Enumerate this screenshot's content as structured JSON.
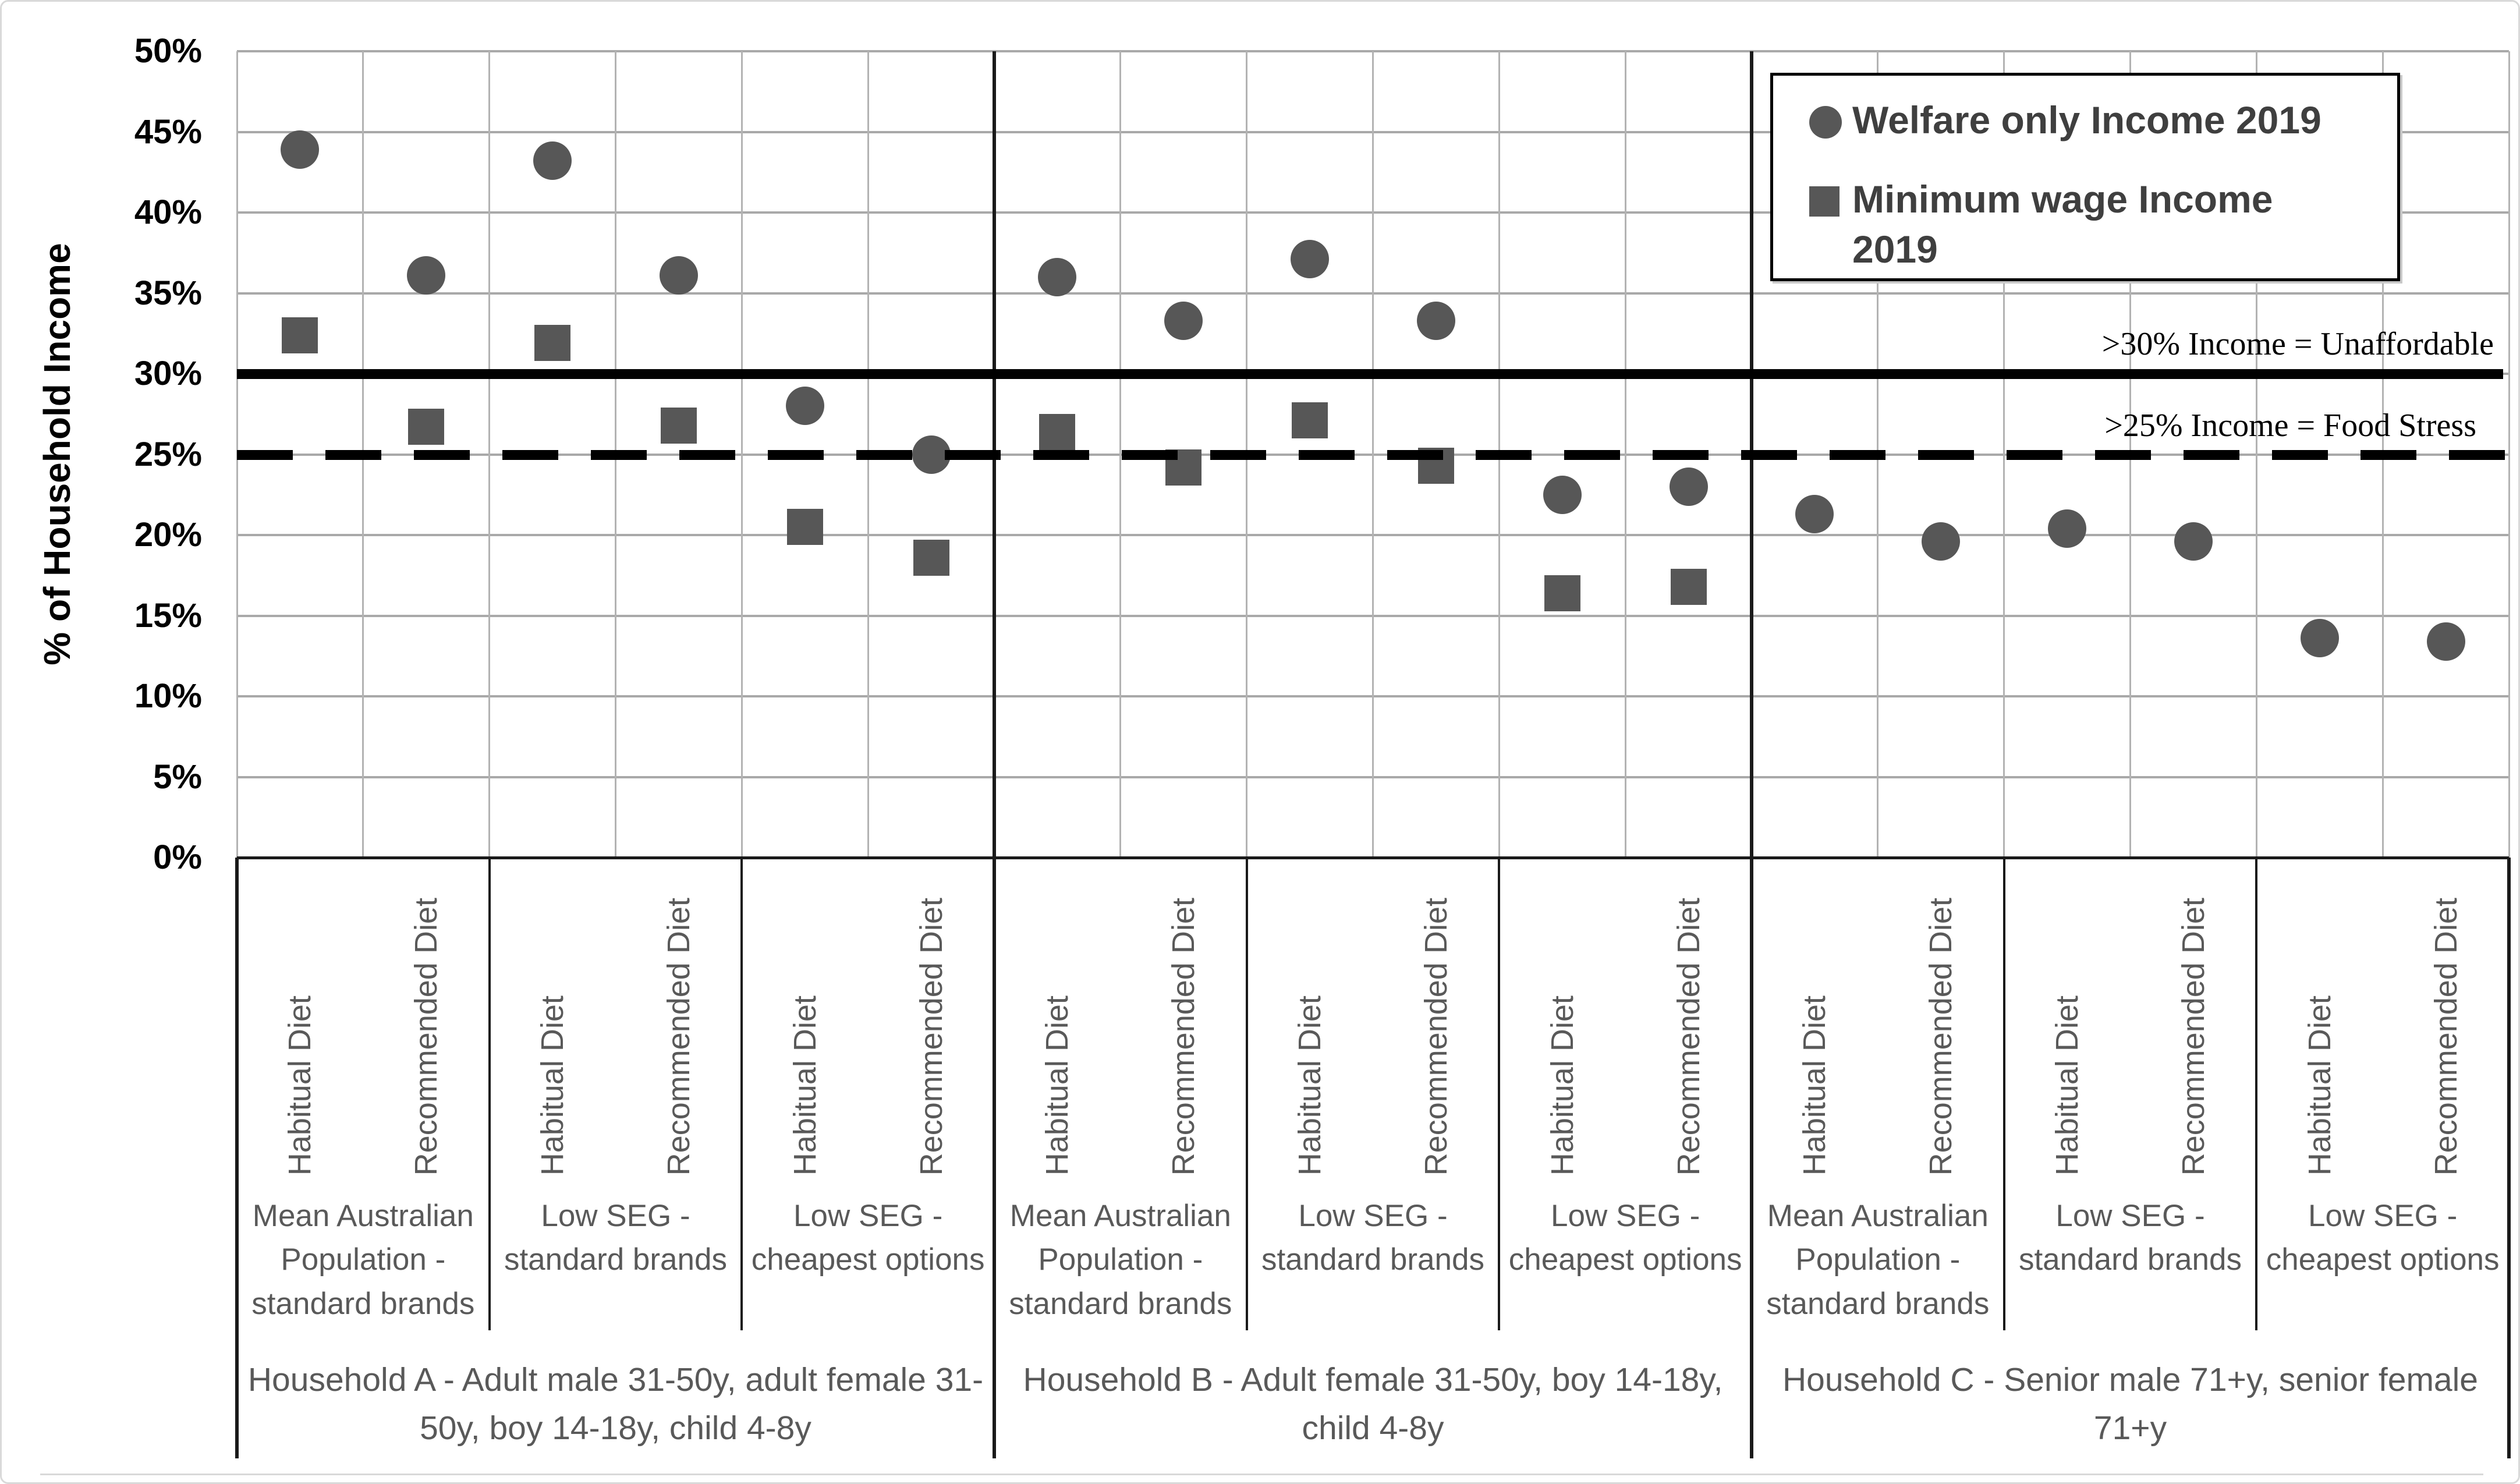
{
  "chart_data": {
    "type": "scatter",
    "title": "",
    "xlabel": "",
    "ylabel": "% of Household Income",
    "ylim": [
      0,
      50
    ],
    "grid": true,
    "legend_position": "top-right",
    "ytick_labels": [
      "0%",
      "5%",
      "10%",
      "15%",
      "20%",
      "25%",
      "30%",
      "35%",
      "40%",
      "45%",
      "50%"
    ],
    "ytick_values": [
      0,
      5,
      10,
      15,
      20,
      25,
      30,
      35,
      40,
      45,
      50
    ],
    "series": [
      {
        "name": "Welfare only Income 2019",
        "marker": "circle",
        "color": "#575757"
      },
      {
        "name": "Minimum wage Income 2019",
        "marker": "square",
        "color": "#575757"
      }
    ],
    "reference_lines": [
      {
        "value": 30,
        "style": "solid",
        "label": ">30% Income = Unaffordable"
      },
      {
        "value": 25,
        "style": "dashed",
        "label": ">25% Income = Food Stress"
      }
    ],
    "households": [
      {
        "label": "Household A - Adult male 31-50y, adult female 31-50y, boy 14-18y, child 4-8y",
        "groups": [
          {
            "label": "Mean Australian Population - standard brands",
            "points": [
              {
                "diet": "Habitual Diet",
                "welfare_only": 43.9,
                "minimum_wage": 32.4
              },
              {
                "diet": "Recommended Diet",
                "welfare_only": 36.1,
                "minimum_wage": 26.7
              }
            ]
          },
          {
            "label": "Low SEG - standard brands",
            "points": [
              {
                "diet": "Habitual Diet",
                "welfare_only": 43.2,
                "minimum_wage": 31.9
              },
              {
                "diet": "Recommended Diet",
                "welfare_only": 36.1,
                "minimum_wage": 26.8
              }
            ]
          },
          {
            "label": "Low SEG - cheapest options",
            "points": [
              {
                "diet": "Habitual Diet",
                "welfare_only": 28.0,
                "minimum_wage": 20.5
              },
              {
                "diet": "Recommended Diet",
                "welfare_only": 25.0,
                "minimum_wage": 18.6
              }
            ]
          }
        ]
      },
      {
        "label": "Household B - Adult female 31-50y, boy 14-18y, child 4-8y",
        "groups": [
          {
            "label": "Mean Australian Population - standard brands",
            "points": [
              {
                "diet": "Habitual Diet",
                "welfare_only": 36.0,
                "minimum_wage": 26.4
              },
              {
                "diet": "Recommended Diet",
                "welfare_only": 33.3,
                "minimum_wage": 24.2
              }
            ]
          },
          {
            "label": "Low SEG - standard brands",
            "points": [
              {
                "diet": "Habitual Diet",
                "welfare_only": 37.1,
                "minimum_wage": 27.1
              },
              {
                "diet": "Recommended Diet",
                "welfare_only": 33.3,
                "minimum_wage": 24.3
              }
            ]
          },
          {
            "label": "Low SEG - cheapest options",
            "points": [
              {
                "diet": "Habitual Diet",
                "welfare_only": 22.5,
                "minimum_wage": 16.4
              },
              {
                "diet": "Recommended Diet",
                "welfare_only": 23.0,
                "minimum_wage": 16.8
              }
            ]
          }
        ]
      },
      {
        "label": "Household C - Senior male 71+y, senior female 71+y",
        "groups": [
          {
            "label": "Mean Australian Population - standard brands",
            "points": [
              {
                "diet": "Habitual Diet",
                "welfare_only": 21.3,
                "minimum_wage": null
              },
              {
                "diet": "Recommended Diet",
                "welfare_only": 19.6,
                "minimum_wage": null
              }
            ]
          },
          {
            "label": "Low SEG - standard brands",
            "points": [
              {
                "diet": "Habitual Diet",
                "welfare_only": 20.4,
                "minimum_wage": null
              },
              {
                "diet": "Recommended Diet",
                "welfare_only": 19.6,
                "minimum_wage": null
              }
            ]
          },
          {
            "label": "Low SEG - cheapest options",
            "points": [
              {
                "diet": "Habitual Diet",
                "welfare_only": 13.6,
                "minimum_wage": null
              },
              {
                "diet": "Recommended Diet",
                "welfare_only": 13.4,
                "minimum_wage": null
              }
            ]
          }
        ]
      }
    ]
  },
  "colors": {
    "marker": "#575757",
    "gridline": "#a9a9a9",
    "separator": "#1a1a1a",
    "label_text": "#595959",
    "legend_text": "#3f3f3f",
    "axis_text": "#000000",
    "frame_border": "#d9d9d9"
  }
}
